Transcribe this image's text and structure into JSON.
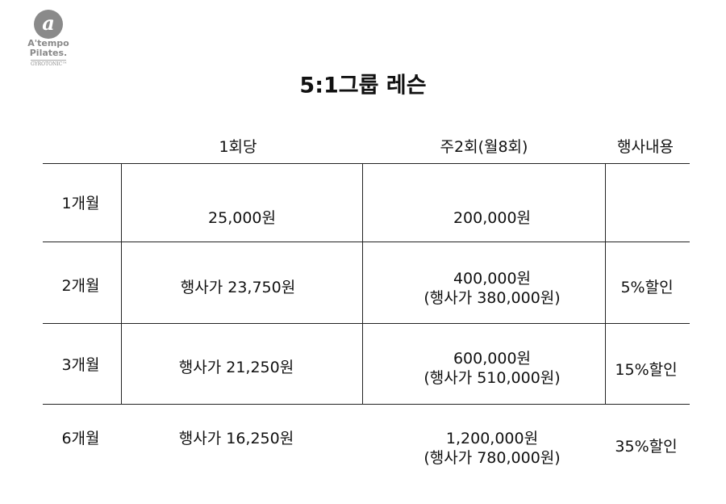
{
  "logo": {
    "mark": "a",
    "name": "A'tempo",
    "sub": "Pilates.",
    "brand": "GYROTONIC™",
    "color": "#8a8a8a"
  },
  "title": "5:1그룹 레슨",
  "headers": [
    "1회당",
    "주2회(월8회)",
    "행사내용"
  ],
  "rows": [
    {
      "label": "1개월",
      "per": "25,000원",
      "total": "200,000원",
      "sale": "",
      "event": ""
    },
    {
      "label": "2개월",
      "per": "행사가 23,750원",
      "total": "400,000원",
      "sale": "(행사가 380,000원)",
      "event": "5%할인"
    },
    {
      "label": "3개월",
      "per": "행사가 21,250원",
      "total": "600,000원",
      "sale": "(행사가 510,000원)",
      "event": "15%할인"
    },
    {
      "label": "6개월",
      "per": "행사가 16,250원",
      "total": "1,200,000원",
      "sale": "(행사가 780,000원)",
      "event": "35%할인"
    }
  ]
}
